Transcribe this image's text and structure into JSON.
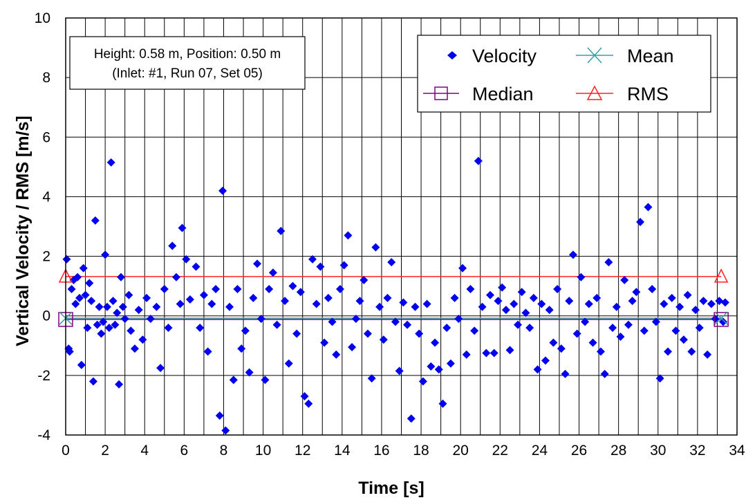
{
  "chart_data": {
    "type": "scatter",
    "xlabel": "Time [s]",
    "ylabel": "Vertical Velocity / RMS  [m/s]",
    "xlim": [
      0,
      34
    ],
    "ylim": [
      -4,
      10
    ],
    "xticks": [
      "0",
      "2",
      "4",
      "6",
      "8",
      "10",
      "12",
      "14",
      "16",
      "18",
      "20",
      "22",
      "24",
      "26",
      "28",
      "30",
      "32",
      "34"
    ],
    "yticks": [
      "-4",
      "-2",
      "0",
      "2",
      "4",
      "6",
      "8",
      "10"
    ],
    "grid": "vertical-every-1s, horizontal-every-2",
    "annotation": {
      "line1": "Height: 0.58 m, Position: 0.50 m",
      "line2": "(Inlet: #1, Run 07, Set 05)"
    },
    "legend": {
      "position": "top-right",
      "entries": [
        "Velocity",
        "Mean",
        "Median",
        "RMS"
      ]
    },
    "colors": {
      "velocity": "#0000ee",
      "mean": "#3a9e9e",
      "median": "#800080",
      "rms": "#ff2020"
    },
    "series": [
      {
        "name": "Velocity",
        "marker": "diamond",
        "points": [
          [
            0.05,
            1.9
          ],
          [
            0.15,
            -1.1
          ],
          [
            0.2,
            -1.2
          ],
          [
            0.3,
            0.9
          ],
          [
            0.4,
            1.2
          ],
          [
            0.5,
            0.4
          ],
          [
            0.6,
            1.3
          ],
          [
            0.7,
            0.6
          ],
          [
            0.8,
            -1.65
          ],
          [
            0.9,
            1.6
          ],
          [
            1.0,
            0.7
          ],
          [
            1.1,
            -0.4
          ],
          [
            1.2,
            1.1
          ],
          [
            1.3,
            0.5
          ],
          [
            1.4,
            -2.2
          ],
          [
            1.5,
            3.2
          ],
          [
            1.6,
            -0.3
          ],
          [
            1.7,
            0.3
          ],
          [
            1.8,
            -0.6
          ],
          [
            1.9,
            -0.2
          ],
          [
            2.0,
            2.05
          ],
          [
            2.1,
            0.3
          ],
          [
            2.2,
            -0.4
          ],
          [
            2.3,
            5.15
          ],
          [
            2.4,
            0.5
          ],
          [
            2.5,
            -0.3
          ],
          [
            2.6,
            0.1
          ],
          [
            2.7,
            -2.3
          ],
          [
            2.8,
            1.3
          ],
          [
            2.9,
            0.3
          ],
          [
            3.0,
            -0.1
          ],
          [
            3.2,
            0.7
          ],
          [
            3.3,
            -0.5
          ],
          [
            3.5,
            -1.1
          ],
          [
            3.7,
            0.2
          ],
          [
            3.9,
            -0.8
          ],
          [
            4.1,
            0.6
          ],
          [
            4.3,
            -0.1
          ],
          [
            4.6,
            0.3
          ],
          [
            4.8,
            -1.75
          ],
          [
            5.0,
            0.9
          ],
          [
            5.2,
            -0.4
          ],
          [
            5.4,
            2.35
          ],
          [
            5.6,
            1.3
          ],
          [
            5.8,
            0.4
          ],
          [
            5.9,
            2.95
          ],
          [
            6.1,
            1.9
          ],
          [
            6.3,
            0.55
          ],
          [
            6.6,
            1.65
          ],
          [
            6.8,
            -0.4
          ],
          [
            7.0,
            0.7
          ],
          [
            7.2,
            -1.2
          ],
          [
            7.4,
            0.4
          ],
          [
            7.6,
            0.9
          ],
          [
            7.8,
            -3.35
          ],
          [
            7.95,
            4.2
          ],
          [
            8.1,
            -3.85
          ],
          [
            8.3,
            0.3
          ],
          [
            8.5,
            -2.15
          ],
          [
            8.7,
            0.9
          ],
          [
            8.9,
            -1.1
          ],
          [
            9.1,
            -0.5
          ],
          [
            9.3,
            -1.9
          ],
          [
            9.5,
            0.6
          ],
          [
            9.7,
            1.75
          ],
          [
            9.9,
            -0.1
          ],
          [
            10.1,
            -2.15
          ],
          [
            10.3,
            0.9
          ],
          [
            10.5,
            1.45
          ],
          [
            10.7,
            -0.3
          ],
          [
            10.9,
            2.85
          ],
          [
            11.1,
            0.5
          ],
          [
            11.3,
            -1.6
          ],
          [
            11.5,
            1.0
          ],
          [
            11.7,
            -0.6
          ],
          [
            11.9,
            0.8
          ],
          [
            12.1,
            -2.7
          ],
          [
            12.3,
            -2.95
          ],
          [
            12.5,
            1.9
          ],
          [
            12.7,
            0.4
          ],
          [
            12.9,
            1.65
          ],
          [
            13.1,
            -0.9
          ],
          [
            13.3,
            0.6
          ],
          [
            13.5,
            -0.2
          ],
          [
            13.7,
            -1.3
          ],
          [
            13.9,
            0.9
          ],
          [
            14.1,
            1.7
          ],
          [
            14.3,
            2.7
          ],
          [
            14.5,
            -1.05
          ],
          [
            14.7,
            -0.1
          ],
          [
            14.9,
            0.5
          ],
          [
            15.1,
            1.2
          ],
          [
            15.3,
            -0.6
          ],
          [
            15.5,
            -2.1
          ],
          [
            15.7,
            2.3
          ],
          [
            15.9,
            0.3
          ],
          [
            16.1,
            -0.8
          ],
          [
            16.3,
            0.6
          ],
          [
            16.5,
            1.8
          ],
          [
            16.7,
            -0.2
          ],
          [
            16.9,
            -1.85
          ],
          [
            17.1,
            0.45
          ],
          [
            17.3,
            -0.3
          ],
          [
            17.5,
            -3.45
          ],
          [
            17.7,
            0.3
          ],
          [
            17.9,
            -0.6
          ],
          [
            18.1,
            -2.2
          ],
          [
            18.3,
            0.4
          ],
          [
            18.5,
            -1.7
          ],
          [
            18.7,
            -0.9
          ],
          [
            18.9,
            -1.8
          ],
          [
            19.1,
            -2.95
          ],
          [
            19.3,
            -0.4
          ],
          [
            19.5,
            -1.6
          ],
          [
            19.7,
            0.6
          ],
          [
            19.9,
            -0.1
          ],
          [
            20.1,
            1.6
          ],
          [
            20.3,
            -1.3
          ],
          [
            20.5,
            0.9
          ],
          [
            20.7,
            -0.5
          ],
          [
            20.9,
            5.2
          ],
          [
            21.1,
            0.3
          ],
          [
            21.3,
            -1.25
          ],
          [
            21.5,
            0.7
          ],
          [
            21.7,
            -1.25
          ],
          [
            21.9,
            0.5
          ],
          [
            22.1,
            0.95
          ],
          [
            22.3,
            0.2
          ],
          [
            22.5,
            -1.15
          ],
          [
            22.7,
            0.4
          ],
          [
            22.9,
            -0.3
          ],
          [
            23.1,
            0.8
          ],
          [
            23.3,
            0.1
          ],
          [
            23.5,
            -0.4
          ],
          [
            23.7,
            0.6
          ],
          [
            23.9,
            -1.8
          ],
          [
            24.1,
            0.4
          ],
          [
            24.3,
            -1.5
          ],
          [
            24.5,
            0.2
          ],
          [
            24.7,
            -0.9
          ],
          [
            24.9,
            0.9
          ],
          [
            25.1,
            -1.1
          ],
          [
            25.3,
            -1.95
          ],
          [
            25.5,
            0.5
          ],
          [
            25.7,
            2.05
          ],
          [
            25.9,
            -0.6
          ],
          [
            26.1,
            1.3
          ],
          [
            26.3,
            -0.2
          ],
          [
            26.5,
            0.4
          ],
          [
            26.7,
            -0.9
          ],
          [
            26.9,
            0.6
          ],
          [
            27.1,
            -1.2
          ],
          [
            27.3,
            -1.95
          ],
          [
            27.5,
            1.8
          ],
          [
            27.7,
            -0.4
          ],
          [
            27.9,
            0.3
          ],
          [
            28.1,
            -0.7
          ],
          [
            28.3,
            1.2
          ],
          [
            28.5,
            -0.3
          ],
          [
            28.7,
            0.5
          ],
          [
            28.9,
            0.8
          ],
          [
            29.1,
            3.15
          ],
          [
            29.3,
            -0.5
          ],
          [
            29.5,
            3.65
          ],
          [
            29.7,
            0.9
          ],
          [
            29.9,
            -0.2
          ],
          [
            30.1,
            -2.1
          ],
          [
            30.3,
            0.4
          ],
          [
            30.5,
            -1.2
          ],
          [
            30.7,
            0.6
          ],
          [
            30.9,
            -0.5
          ],
          [
            31.1,
            0.3
          ],
          [
            31.3,
            -0.8
          ],
          [
            31.5,
            0.7
          ],
          [
            31.7,
            -1.2
          ],
          [
            31.9,
            0.2
          ],
          [
            32.1,
            -0.4
          ],
          [
            32.3,
            0.5
          ],
          [
            32.5,
            -1.3
          ],
          [
            32.7,
            0.4
          ],
          [
            32.9,
            -0.1
          ],
          [
            33.1,
            0.5
          ],
          [
            33.3,
            -0.2
          ],
          [
            33.4,
            0.45
          ]
        ]
      },
      {
        "name": "Mean",
        "marker": "x",
        "points": [
          [
            0,
            -0.08
          ],
          [
            33.2,
            -0.08
          ]
        ]
      },
      {
        "name": "Median",
        "marker": "square",
        "points": [
          [
            0,
            -0.12
          ],
          [
            33.2,
            -0.12
          ]
        ]
      },
      {
        "name": "RMS",
        "marker": "triangle",
        "points": [
          [
            0,
            1.32
          ],
          [
            33.2,
            1.32
          ]
        ]
      }
    ]
  }
}
